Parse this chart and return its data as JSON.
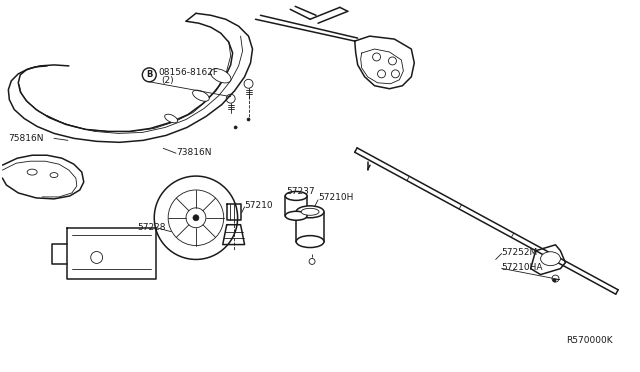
{
  "bg_color": "#f5f5f0",
  "line_color": "#1a1a1a",
  "figsize": [
    6.4,
    3.72
  ],
  "dpi": 100,
  "ref_text": "R570000K",
  "labels": {
    "part_B": "B",
    "08156": "08156-8162F",
    "08156_sub": "(2)",
    "75816N": "75816N",
    "73816N": "73816N",
    "57210": "57210",
    "57228": "57228",
    "57237": "57237",
    "57210H": "57210H",
    "57252M": "57252M",
    "57210HA": "57210HA"
  },
  "label_fs": 6.5,
  "lw_main": 1.1,
  "lw_thin": 0.6
}
